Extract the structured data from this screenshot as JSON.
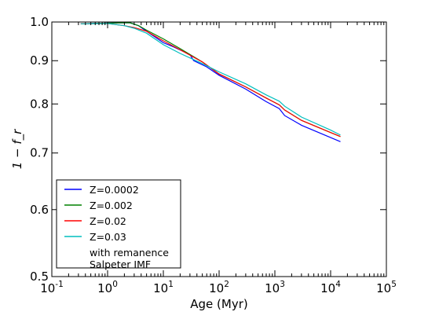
{
  "chart_data": {
    "type": "line",
    "xlabel": "Age (Myr)",
    "ylabel": "1 − f_r",
    "x_scale": "log",
    "y_scale": "log",
    "xlim": [
      0.1,
      100000
    ],
    "ylim": [
      0.5,
      1.0
    ],
    "grid": false,
    "legend_position": "lower-left",
    "x_ticks": [
      {
        "value": 0.1,
        "base": "10",
        "exp": "-1"
      },
      {
        "value": 1,
        "base": "10",
        "exp": "0"
      },
      {
        "value": 10,
        "base": "10",
        "exp": "1"
      },
      {
        "value": 100,
        "base": "10",
        "exp": "2"
      },
      {
        "value": 1000,
        "base": "10",
        "exp": "3"
      },
      {
        "value": 10000,
        "base": "10",
        "exp": "4"
      },
      {
        "value": 100000,
        "base": "10",
        "exp": "5"
      }
    ],
    "y_ticks": [
      {
        "value": 0.5,
        "label": "0.5"
      },
      {
        "value": 0.6,
        "label": "0.6"
      },
      {
        "value": 0.7,
        "label": "0.7"
      },
      {
        "value": 0.8,
        "label": "0.8"
      },
      {
        "value": 0.9,
        "label": "0.9"
      },
      {
        "value": 1.0,
        "label": "1.0"
      }
    ],
    "series": [
      {
        "name": "Z=0.0002",
        "color": "#0000ff",
        "points": [
          [
            0.33,
            0.995
          ],
          [
            1,
            0.997
          ],
          [
            2.5,
            0.998
          ],
          [
            3.6,
            0.99
          ],
          [
            5,
            0.975
          ],
          [
            10,
            0.945
          ],
          [
            15,
            0.935
          ],
          [
            30,
            0.915
          ],
          [
            35,
            0.9
          ],
          [
            60,
            0.885
          ],
          [
            100,
            0.865
          ],
          [
            300,
            0.833
          ],
          [
            700,
            0.805
          ],
          [
            1200,
            0.79
          ],
          [
            1500,
            0.775
          ],
          [
            3000,
            0.755
          ],
          [
            10000,
            0.73
          ],
          [
            15000,
            0.722
          ]
        ]
      },
      {
        "name": "Z=0.002",
        "color": "#008000",
        "points": [
          [
            0.33,
            0.995
          ],
          [
            1,
            0.997
          ],
          [
            2.5,
            0.998
          ],
          [
            3.6,
            0.99
          ],
          [
            5,
            0.978
          ],
          [
            10,
            0.955
          ],
          [
            20,
            0.93
          ],
          [
            50,
            0.897
          ],
          [
            100,
            0.868
          ],
          [
            300,
            0.838
          ],
          [
            700,
            0.813
          ],
          [
            1200,
            0.798
          ],
          [
            1500,
            0.787
          ],
          [
            3000,
            0.765
          ],
          [
            10000,
            0.74
          ],
          [
            15000,
            0.732
          ]
        ]
      },
      {
        "name": "Z=0.02",
        "color": "#ff0000",
        "points": [
          [
            0.33,
            0.995
          ],
          [
            1,
            0.996
          ],
          [
            2,
            0.99
          ],
          [
            3,
            0.985
          ],
          [
            5,
            0.975
          ],
          [
            10,
            0.95
          ],
          [
            20,
            0.927
          ],
          [
            50,
            0.897
          ],
          [
            100,
            0.868
          ],
          [
            300,
            0.838
          ],
          [
            700,
            0.813
          ],
          [
            1200,
            0.798
          ],
          [
            1500,
            0.787
          ],
          [
            3000,
            0.765
          ],
          [
            10000,
            0.74
          ],
          [
            15000,
            0.732
          ]
        ]
      },
      {
        "name": "Z=0.03",
        "color": "#00bfbf",
        "points": [
          [
            0.33,
            0.995
          ],
          [
            1,
            0.996
          ],
          [
            2,
            0.99
          ],
          [
            3,
            0.983
          ],
          [
            5,
            0.97
          ],
          [
            10,
            0.94
          ],
          [
            20,
            0.918
          ],
          [
            50,
            0.893
          ],
          [
            100,
            0.873
          ],
          [
            300,
            0.845
          ],
          [
            700,
            0.82
          ],
          [
            1200,
            0.806
          ],
          [
            1500,
            0.795
          ],
          [
            3000,
            0.772
          ],
          [
            10000,
            0.745
          ],
          [
            15000,
            0.735
          ]
        ]
      }
    ],
    "annotations": [
      "with remanence",
      "Salpeter IMF"
    ]
  }
}
